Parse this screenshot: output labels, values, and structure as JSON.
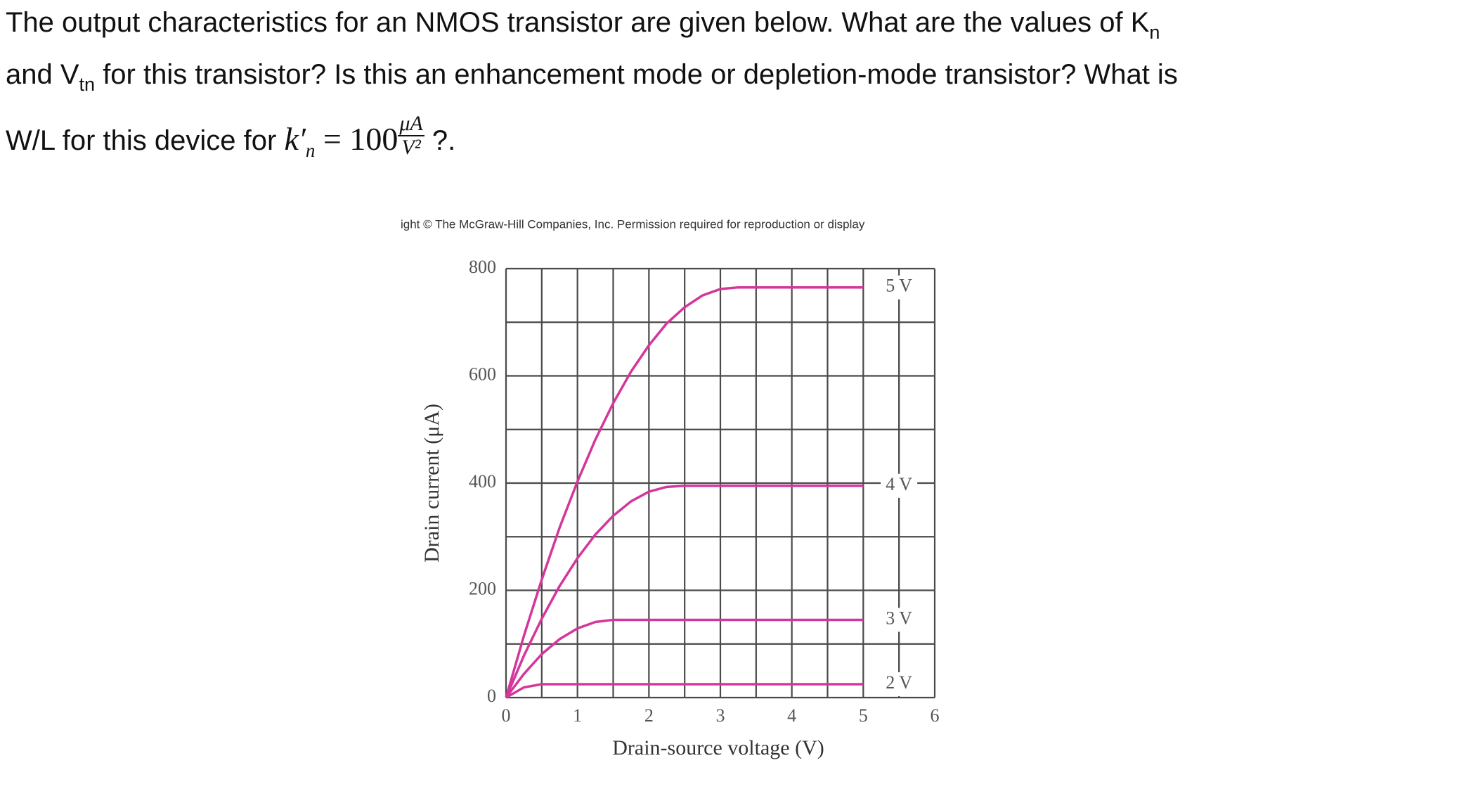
{
  "question": {
    "line1": "The output characteristics for an NMOS transistor are given below. What are the values of K",
    "line1_sub": "n",
    "line2_a": "and V",
    "line2_sub": "tn",
    "line2_b": "for this transistor? Is this an enhancement mode or depletion-mode transistor? What is",
    "line3_a": "W/L for this device for",
    "formula": {
      "lhs": "k′",
      "lhs_sub": "n",
      "eq": "= 100",
      "num": "μA",
      "den": "V²"
    },
    "line3_b": "?."
  },
  "chart_data": {
    "type": "line",
    "credit": "ight © The McGraw-Hill Companies, Inc. Permission required for reproduction or display",
    "x_label": "Drain-source voltage (V)",
    "y_label": "Drain current (μA)",
    "xlim": [
      0,
      6
    ],
    "xticks": [
      0,
      1,
      2,
      3,
      4,
      5,
      6
    ],
    "ylim": [
      0,
      800
    ],
    "yticks": [
      0,
      200,
      400,
      600,
      800
    ],
    "xgrid": [
      0,
      0.5,
      1,
      1.5,
      2,
      2.5,
      3,
      3.5,
      4,
      4.5,
      5,
      5.5,
      6
    ],
    "ygrid": [
      0,
      100,
      200,
      300,
      400,
      500,
      600,
      700,
      800
    ],
    "grid": true,
    "label_x": 5.5,
    "x": [
      0,
      0.25,
      0.5,
      0.75,
      1,
      1.25,
      1.5,
      1.75,
      2,
      2.25,
      2.5,
      2.75,
      3,
      3.25,
      3.5,
      3.75,
      4,
      4.25,
      4.5,
      4.75,
      5
    ],
    "series": [
      {
        "name": "5 V",
        "color": "#d4369b",
        "values": [
          0,
          115,
          220,
          317,
          403,
          481,
          549,
          608,
          657,
          698,
          728,
          750,
          762,
          765,
          765,
          765,
          765,
          765,
          765,
          765,
          765
        ]
      },
      {
        "name": "4 V",
        "color": "#d4369b",
        "values": [
          0,
          78,
          147,
          208,
          260,
          304,
          339,
          366,
          384,
          393,
          395,
          395,
          395,
          395,
          395,
          395,
          395,
          395,
          395,
          395,
          395
        ]
      },
      {
        "name": "3 V",
        "color": "#d4369b",
        "values": [
          0,
          44,
          81,
          109,
          129,
          141,
          145,
          145,
          145,
          145,
          145,
          145,
          145,
          145,
          145,
          145,
          145,
          145,
          145,
          145,
          145
        ]
      },
      {
        "name": "2 V",
        "color": "#d4369b",
        "values": [
          0,
          19,
          25,
          25,
          25,
          25,
          25,
          25,
          25,
          25,
          25,
          25,
          25,
          25,
          25,
          25,
          25,
          25,
          25,
          25,
          25
        ]
      }
    ]
  }
}
